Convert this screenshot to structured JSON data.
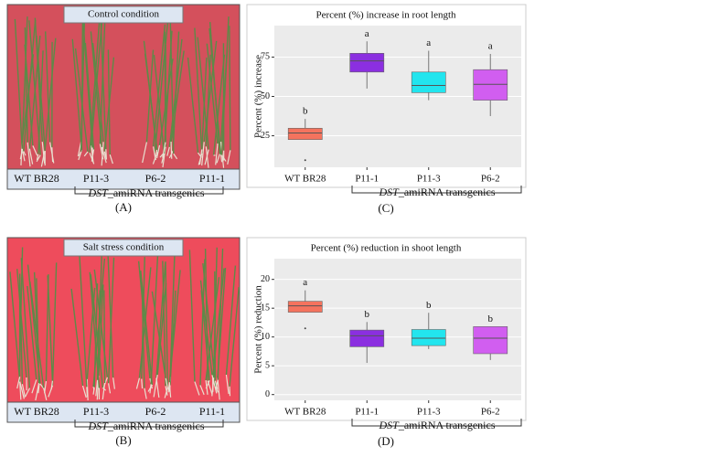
{
  "photos": [
    {
      "title": "Control condition",
      "labels": [
        "WT BR28",
        "P11-3",
        "P6-2",
        "P11-1"
      ],
      "group_label": [
        "DST",
        "_amiRNA transgenics"
      ],
      "caption": "(A)",
      "color": "#d4505c"
    },
    {
      "title": "Salt stress condition",
      "labels": [
        "WT BR28",
        "P11-3",
        "P6-2",
        "P11-1"
      ],
      "group_label": [
        "DST",
        "_amiRNA transgenics"
      ],
      "caption": "(B)",
      "color": "#ee4c5c"
    }
  ],
  "chart_data": [
    {
      "type": "box",
      "title": "Percent (%) increase in root length",
      "ylabel": "Percent (%) increase",
      "categories": [
        "WT BR28",
        "P11-1",
        "P11-3",
        "P6-2"
      ],
      "boxes": [
        {
          "whisker_low": 22.6,
          "q1": 22.6,
          "median": 26.8,
          "q3": 29.8,
          "whisker_high": 35.7,
          "outliers": [
            9.5
          ],
          "letter": "b",
          "color": "#f4735e"
        },
        {
          "whisker_low": 55,
          "q1": 65.5,
          "median": 72.6,
          "q3": 77.4,
          "whisker_high": 85,
          "outliers": [],
          "letter": "a",
          "color": "#8b2fe0"
        },
        {
          "whisker_low": 47.6,
          "q1": 52.4,
          "median": 57,
          "q3": 65.5,
          "whisker_high": 79,
          "outliers": [],
          "letter": "a",
          "color": "#22e5ee"
        },
        {
          "whisker_low": 37.5,
          "q1": 47.6,
          "median": 57.7,
          "q3": 67,
          "whisker_high": 77,
          "outliers": [],
          "letter": "a",
          "color": "#d15ef0"
        }
      ],
      "ylim": [
        5,
        95
      ],
      "yticks": [
        25,
        50,
        75
      ],
      "grid": true,
      "group_label": [
        "DST",
        "_amiRNA transgenics"
      ],
      "caption": "(C)"
    },
    {
      "type": "box",
      "title": "Percent (%) reduction in shoot length",
      "ylabel": "Percent (%) reduction",
      "categories": [
        "WT BR28",
        "P11-1",
        "P11-3",
        "P6-2"
      ],
      "boxes": [
        {
          "whisker_low": 14.3,
          "q1": 14.3,
          "median": 15.4,
          "q3": 16.2,
          "whisker_high": 18.1,
          "outliers": [
            11.5
          ],
          "letter": "a",
          "color": "#f4735e"
        },
        {
          "whisker_low": 5.5,
          "q1": 8.3,
          "median": 10.2,
          "q3": 11.2,
          "whisker_high": 12.6,
          "outliers": [],
          "letter": "b",
          "color": "#8b2fe0"
        },
        {
          "whisker_low": 7.9,
          "q1": 8.5,
          "median": 9.8,
          "q3": 11.3,
          "whisker_high": 14.2,
          "outliers": [],
          "letter": "b",
          "color": "#22e5ee"
        },
        {
          "whisker_low": 6,
          "q1": 7.1,
          "median": 9.8,
          "q3": 11.8,
          "whisker_high": 11.8,
          "outliers": [],
          "letter": "b",
          "color": "#d15ef0"
        }
      ],
      "ylim": [
        -1,
        23.6
      ],
      "yticks": [
        0,
        5,
        10,
        15,
        20
      ],
      "grid": true,
      "group_label": [
        "DST",
        "_amiRNA transgenics"
      ],
      "caption": "(D)"
    }
  ]
}
